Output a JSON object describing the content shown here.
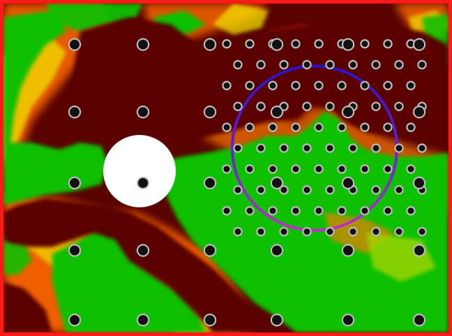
{
  "colors": {
    "border": "#ff1a1a",
    "dark_region": "#5a0300",
    "green_region": "#10c000",
    "transition_red": "#e02000",
    "transition_orange": "#ff7a00",
    "transition_yellow": "#f2e000",
    "obstacle": "#ffffff",
    "circle_stroke_top": "#2a14c8",
    "circle_stroke_bottom": "#c52bd0",
    "sensor_fill": "#111111",
    "sensor_ring": "#bdbdbd"
  },
  "icons": {
    "obstacle": "white-disc-obstacle",
    "selection": "blue-magenta-ring",
    "sensor": "sensor-dot"
  }
}
